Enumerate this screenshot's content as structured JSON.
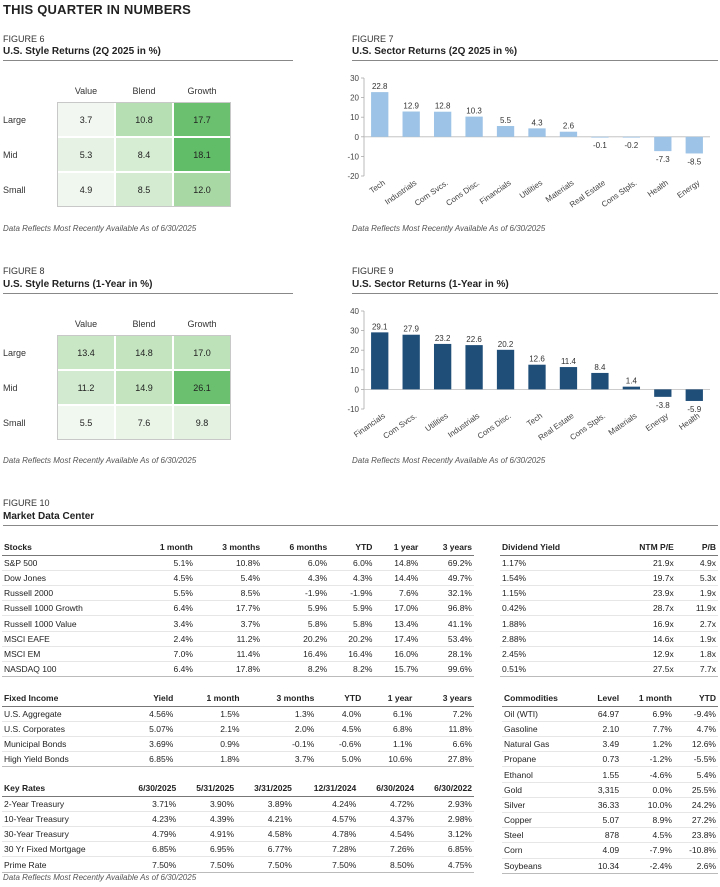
{
  "page_title": "THIS QUARTER IN NUMBERS",
  "note": "Data Reflects Most Recently Available As of 6/30/2025",
  "fig6": {
    "label": "FIGURE 6",
    "title": "U.S. Style Returns (2Q 2025 in %)",
    "columns": [
      "Value",
      "Blend",
      "Growth"
    ],
    "rows": [
      "Large",
      "Mid",
      "Small"
    ],
    "values": [
      [
        "3.7",
        "10.8",
        "17.7"
      ],
      [
        "5.3",
        "8.4",
        "18.1"
      ],
      [
        "4.9",
        "8.5",
        "12.0"
      ]
    ],
    "colors": [
      [
        "#f2f8f1",
        "#b7dfb4",
        "#6ac06f"
      ],
      [
        "#e6f3e4",
        "#d6ecd3",
        "#62bd69"
      ],
      [
        "#f0f7ee",
        "#d4ebd1",
        "#a8d8a4"
      ]
    ]
  },
  "fig7": {
    "label": "FIGURE 7",
    "title": "U.S. Sector Returns (2Q 2025 in %)",
    "chart_data": {
      "type": "bar",
      "title": "U.S. Sector Returns (2Q 2025 in %)",
      "categories": [
        "Tech",
        "Industrials",
        "Com Svcs.",
        "Cons Disc.",
        "Financials",
        "Utilities",
        "Materials",
        "Real Estate",
        "Cons Stpls.",
        "Health",
        "Energy"
      ],
      "values": [
        22.8,
        12.9,
        12.8,
        10.3,
        5.5,
        4.3,
        2.6,
        -0.1,
        -0.2,
        -7.3,
        -8.5
      ],
      "labels": [
        "22.8",
        "12.9",
        "12.8",
        "10.3",
        "5.5",
        "4.3",
        "2.6",
        "-0.1",
        "-0.2",
        "-7.3",
        "-8.5"
      ],
      "ylim": [
        -20,
        30
      ],
      "yticks": [
        "30",
        "20",
        "10",
        "0",
        "-10",
        "-20"
      ],
      "color": "#9dc3e6"
    }
  },
  "fig8": {
    "label": "FIGURE 8",
    "title": "U.S. Style Returns (1-Year in %)",
    "columns": [
      "Value",
      "Blend",
      "Growth"
    ],
    "rows": [
      "Large",
      "Mid",
      "Small"
    ],
    "values": [
      [
        "13.4",
        "14.8",
        "17.0"
      ],
      [
        "11.2",
        "14.9",
        "26.1"
      ],
      [
        "5.5",
        "7.6",
        "9.8"
      ]
    ],
    "colors": [
      [
        "#c9e6c5",
        "#c4e4c0",
        "#bde1b8"
      ],
      [
        "#d2ead0",
        "#c3e4bf",
        "#6ac06f"
      ],
      [
        "#f1f8ef",
        "#eaf5e8",
        "#e3f2e1"
      ]
    ]
  },
  "fig9": {
    "label": "FIGURE 9",
    "title": "U.S. Sector Returns (1-Year in %)",
    "chart_data": {
      "type": "bar",
      "title": "U.S. Sector Returns (1-Year in %)",
      "categories": [
        "Financials",
        "Com Svcs.",
        "Utilities",
        "Industrials",
        "Cons Disc.",
        "Tech",
        "Real Estate",
        "Cons Stpls.",
        "Materials",
        "Energy",
        "Health"
      ],
      "values": [
        29.1,
        27.9,
        23.2,
        22.6,
        20.2,
        12.6,
        11.4,
        8.4,
        1.4,
        -3.8,
        -5.9
      ],
      "labels": [
        "29.1",
        "27.9",
        "23.2",
        "22.6",
        "20.2",
        "12.6",
        "11.4",
        "8.4",
        "1.4",
        "-3.8",
        "-5.9"
      ],
      "ylim": [
        -10,
        40
      ],
      "yticks": [
        "40",
        "30",
        "20",
        "10",
        "0",
        "-10"
      ],
      "color": "#1f4e79"
    }
  },
  "fig10": {
    "label": "FIGURE 10",
    "title": "Market Data Center",
    "stocks": {
      "headers": [
        "Stocks",
        "1 month",
        "3 months",
        "6 months",
        "YTD",
        "1 year",
        "3 years"
      ],
      "rows": [
        [
          "S&P 500",
          "5.1%",
          "10.8%",
          "6.0%",
          "6.0%",
          "14.8%",
          "69.2%"
        ],
        [
          "Dow Jones",
          "4.5%",
          "5.4%",
          "4.3%",
          "4.3%",
          "14.4%",
          "49.7%"
        ],
        [
          "Russell 2000",
          "5.5%",
          "8.5%",
          "-1.9%",
          "-1.9%",
          "7.6%",
          "32.1%"
        ],
        [
          "Russell 1000 Growth",
          "6.4%",
          "17.7%",
          "5.9%",
          "5.9%",
          "17.0%",
          "96.8%"
        ],
        [
          "Russell 1000 Value",
          "3.4%",
          "3.7%",
          "5.8%",
          "5.8%",
          "13.4%",
          "41.1%"
        ],
        [
          "MSCI EAFE",
          "2.4%",
          "11.2%",
          "20.2%",
          "20.2%",
          "17.4%",
          "53.4%"
        ],
        [
          "MSCI EM",
          "7.0%",
          "11.4%",
          "16.4%",
          "16.4%",
          "16.0%",
          "28.1%"
        ],
        [
          "NASDAQ 100",
          "6.4%",
          "17.8%",
          "8.2%",
          "8.2%",
          "15.7%",
          "99.6%"
        ]
      ]
    },
    "dividend": {
      "headers": [
        "Dividend Yield",
        "NTM P/E",
        "P/B"
      ],
      "rows": [
        [
          "1.17%",
          "21.9x",
          "4.9x"
        ],
        [
          "1.54%",
          "19.7x",
          "5.3x"
        ],
        [
          "1.15%",
          "23.9x",
          "1.9x"
        ],
        [
          "0.42%",
          "28.7x",
          "11.9x"
        ],
        [
          "1.88%",
          "16.9x",
          "2.7x"
        ],
        [
          "2.88%",
          "14.6x",
          "1.9x"
        ],
        [
          "2.45%",
          "12.9x",
          "1.8x"
        ],
        [
          "0.51%",
          "27.5x",
          "7.7x"
        ]
      ]
    },
    "fixed_income": {
      "headers": [
        "Fixed Income",
        "Yield",
        "1 month",
        "3 months",
        "YTD",
        "1 year",
        "3 years"
      ],
      "rows": [
        [
          "U.S. Aggregate",
          "4.56%",
          "1.5%",
          "1.3%",
          "4.0%",
          "6.1%",
          "7.2%"
        ],
        [
          "U.S. Corporates",
          "5.07%",
          "2.1%",
          "2.0%",
          "4.5%",
          "6.8%",
          "11.8%"
        ],
        [
          "Municipal Bonds",
          "3.69%",
          "0.9%",
          "-0.1%",
          "-0.6%",
          "1.1%",
          "6.6%"
        ],
        [
          "High Yield Bonds",
          "6.85%",
          "1.8%",
          "3.7%",
          "5.0%",
          "10.6%",
          "27.8%"
        ]
      ]
    },
    "key_rates": {
      "headers": [
        "Key Rates",
        "6/30/2025",
        "5/31/2025",
        "3/31/2025",
        "12/31/2024",
        "6/30/2024",
        "6/30/2022"
      ],
      "rows": [
        [
          "2-Year Treasury",
          "3.71%",
          "3.90%",
          "3.89%",
          "4.24%",
          "4.72%",
          "2.93%"
        ],
        [
          "10-Year Treasury",
          "4.23%",
          "4.39%",
          "4.21%",
          "4.57%",
          "4.37%",
          "2.98%"
        ],
        [
          "30-Year Treasury",
          "4.79%",
          "4.91%",
          "4.58%",
          "4.78%",
          "4.54%",
          "3.12%"
        ],
        [
          "30 Yr Fixed Mortgage",
          "6.85%",
          "6.95%",
          "6.77%",
          "7.28%",
          "7.26%",
          "6.85%"
        ],
        [
          "Prime Rate",
          "7.50%",
          "7.50%",
          "7.50%",
          "7.50%",
          "8.50%",
          "4.75%"
        ]
      ]
    },
    "commodities": {
      "headers": [
        "Commodities",
        "Level",
        "1 month",
        "YTD"
      ],
      "rows": [
        [
          "Oil (WTI)",
          "64.97",
          "6.9%",
          "-9.4%"
        ],
        [
          "Gasoline",
          "2.10",
          "7.7%",
          "4.7%"
        ],
        [
          "Natural Gas",
          "3.49",
          "1.2%",
          "12.6%"
        ],
        [
          "Propane",
          "0.73",
          "-1.2%",
          "-5.5%"
        ],
        [
          "Ethanol",
          "1.55",
          "-4.6%",
          "5.4%"
        ],
        [
          "Gold",
          "3,315",
          "0.0%",
          "25.5%"
        ],
        [
          "Silver",
          "36.33",
          "10.0%",
          "24.2%"
        ],
        [
          "Copper",
          "5.07",
          "8.9%",
          "27.2%"
        ],
        [
          "Steel",
          "878",
          "4.5%",
          "23.8%"
        ],
        [
          "Corn",
          "4.09",
          "-7.9%",
          "-10.8%"
        ],
        [
          "Soybeans",
          "10.34",
          "-2.4%",
          "2.6%"
        ]
      ]
    }
  }
}
